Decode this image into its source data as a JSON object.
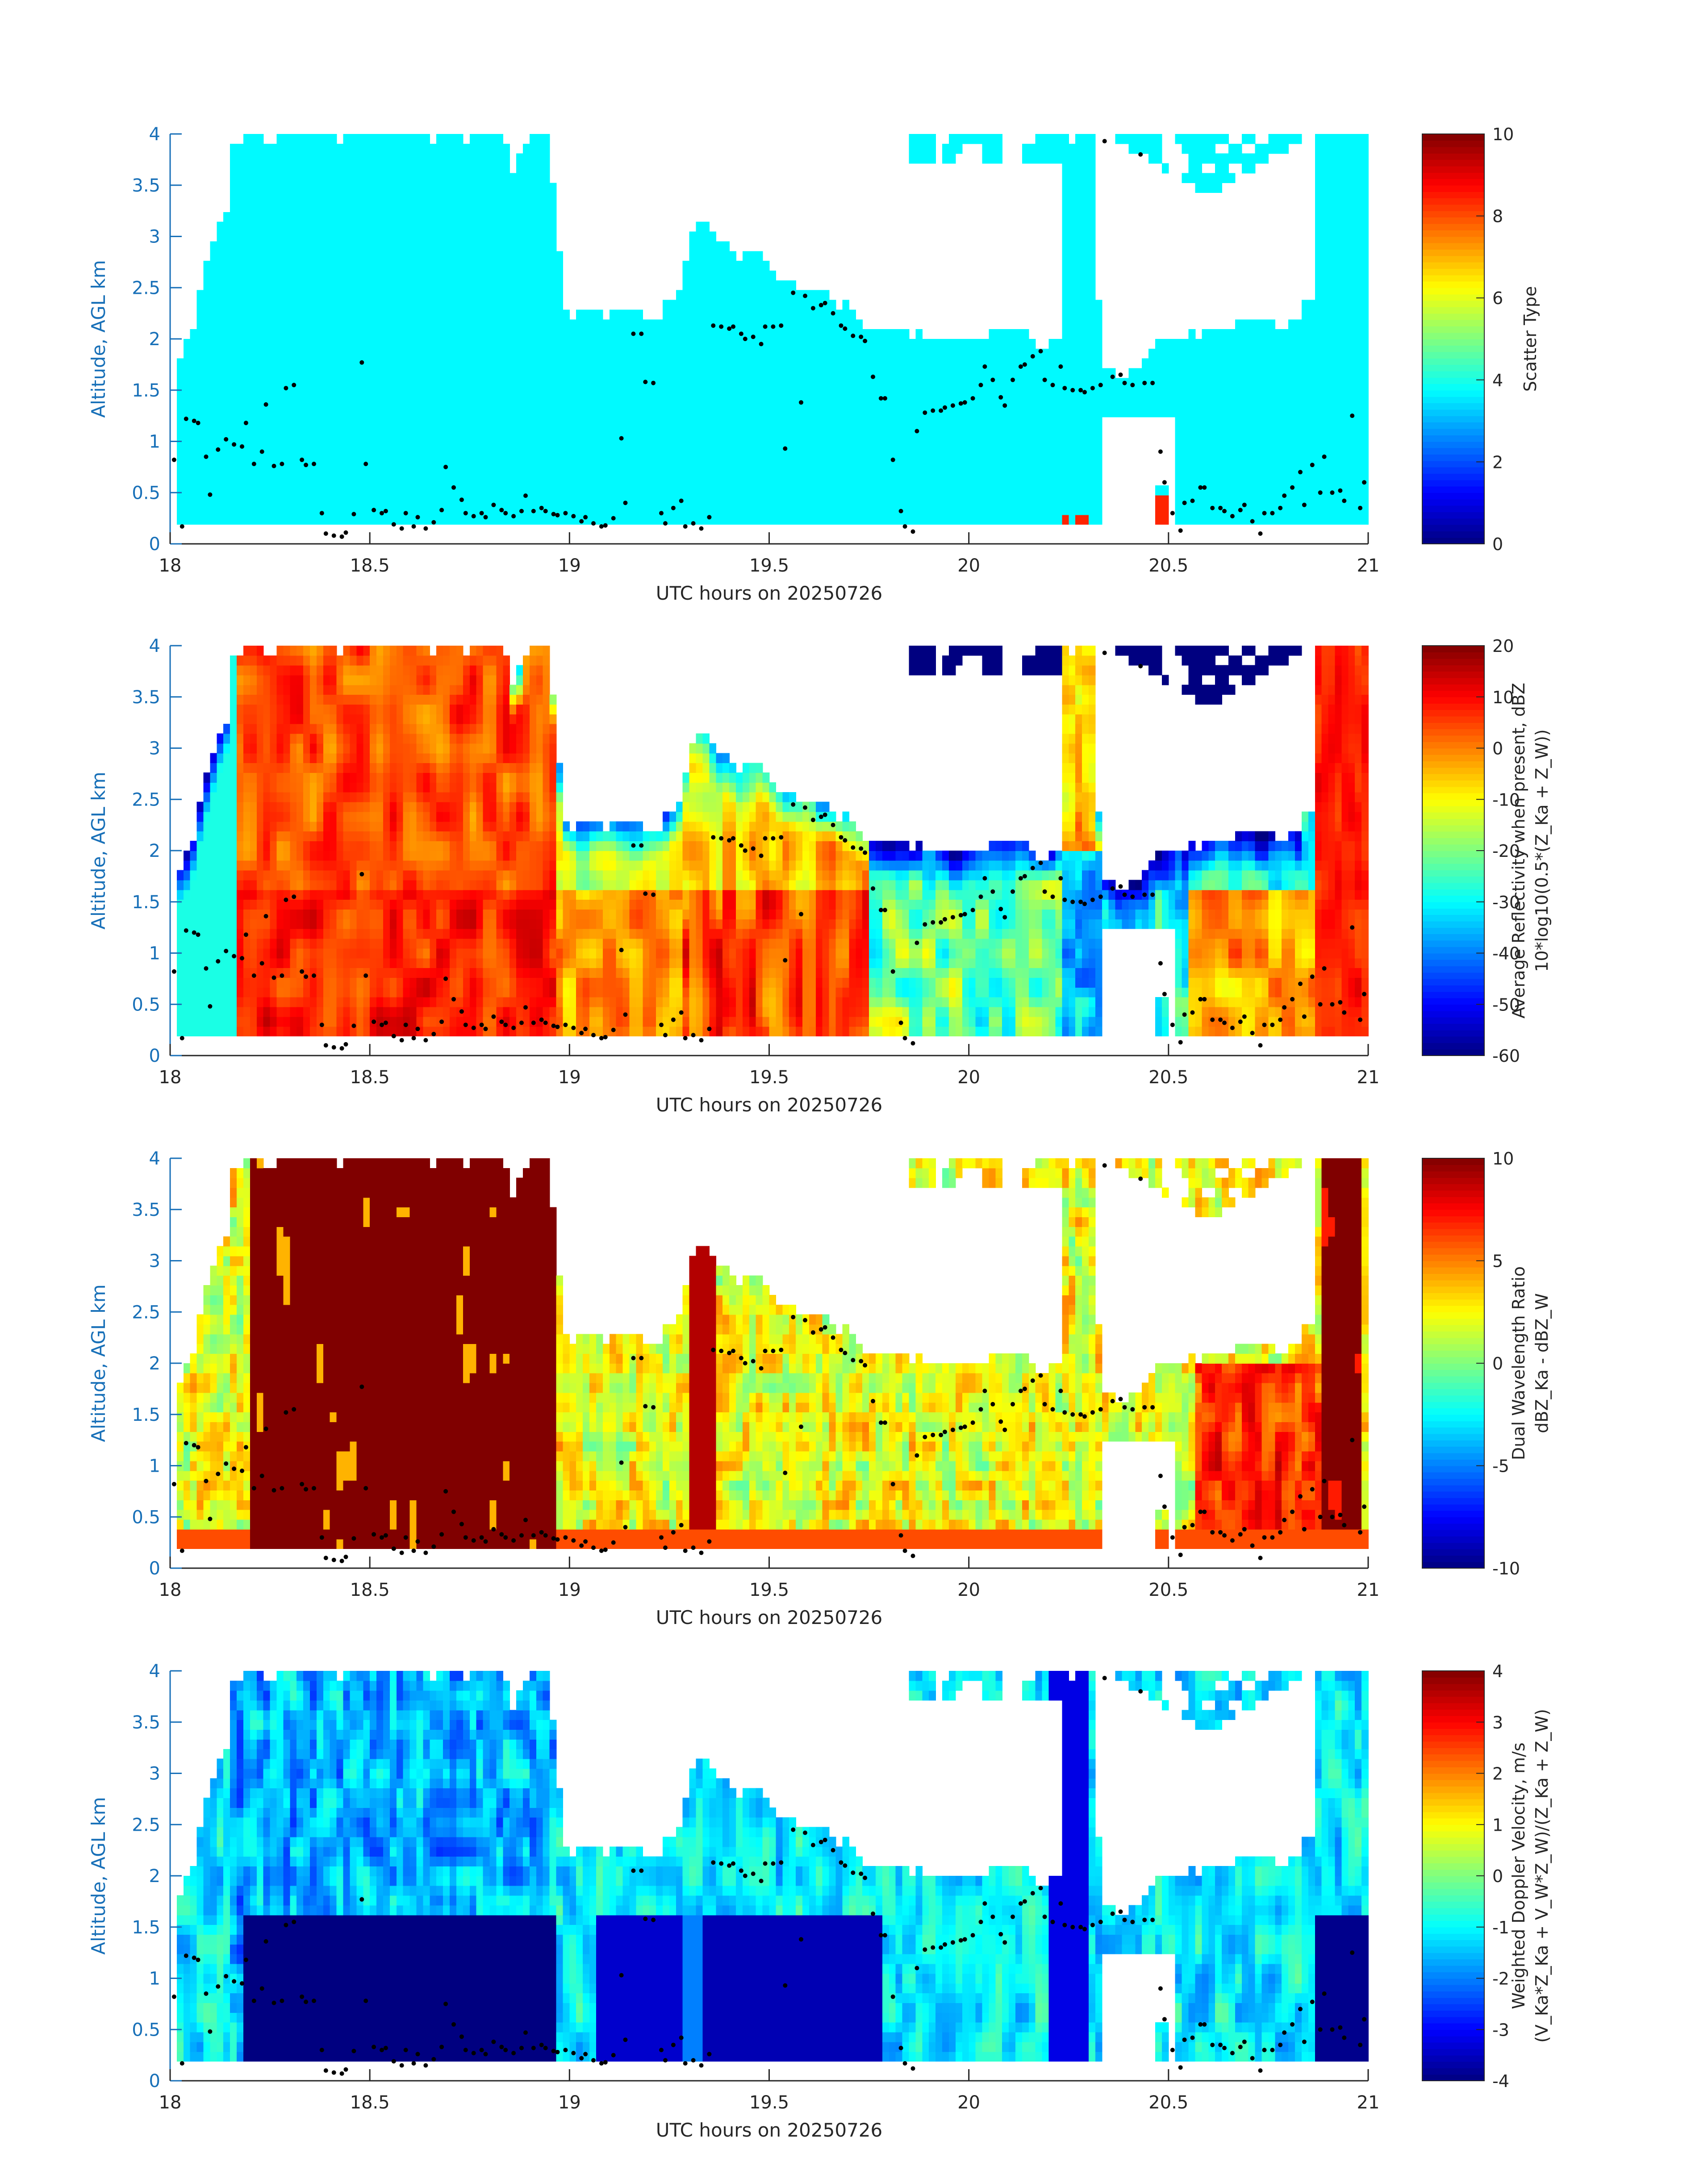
{
  "chart_data": [
    {
      "type": "heatmap",
      "title": "",
      "xlabel": "UTC hours on 20250726",
      "ylabel": "Altitude, AGL km",
      "xlim": [
        18,
        21
      ],
      "ylim": [
        0,
        4
      ],
      "x_ticks": [
        "18",
        "18.5",
        "19",
        "19.5",
        "20",
        "20.5",
        "21"
      ],
      "y_ticks": [
        "0",
        "0.5",
        "1",
        "1.5",
        "2",
        "2.5",
        "3",
        "3.5",
        "4"
      ],
      "colorbar": {
        "label_lines": [
          "Scatter Type"
        ],
        "range": [
          0,
          10
        ],
        "ticks": [
          "0",
          "2",
          "4",
          "6",
          "8",
          "10"
        ]
      },
      "field": "scatter_type"
    },
    {
      "type": "heatmap",
      "title": "",
      "xlabel": "UTC hours on 20250726",
      "ylabel": "Altitude, AGL km",
      "xlim": [
        18,
        21
      ],
      "ylim": [
        0,
        4
      ],
      "x_ticks": [
        "18",
        "18.5",
        "19",
        "19.5",
        "20",
        "20.5",
        "21"
      ],
      "y_ticks": [
        "0",
        "0.5",
        "1",
        "1.5",
        "2",
        "2.5",
        "3",
        "3.5",
        "4"
      ],
      "colorbar": {
        "label_lines": [
          "Average Reflectivity when present, dBZ",
          "10*log10(0.5*(Z_Ka + Z_W))"
        ],
        "range": [
          -60,
          20
        ],
        "ticks": [
          "-60",
          "-50",
          "-40",
          "-30",
          "-20",
          "-10",
          "0",
          "10",
          "20"
        ]
      },
      "field": "reflectivity"
    },
    {
      "type": "heatmap",
      "title": "",
      "xlabel": "UTC hours on 20250726",
      "ylabel": "Altitude, AGL km",
      "xlim": [
        18,
        21
      ],
      "ylim": [
        0,
        4
      ],
      "x_ticks": [
        "18",
        "18.5",
        "19",
        "19.5",
        "20",
        "20.5",
        "21"
      ],
      "y_ticks": [
        "0",
        "0.5",
        "1",
        "1.5",
        "2",
        "2.5",
        "3",
        "3.5",
        "4"
      ],
      "colorbar": {
        "label_lines": [
          "Dual Wavelength Ratio",
          "dBZ_Ka - dBZ_W"
        ],
        "range": [
          -10,
          10
        ],
        "ticks": [
          "-10",
          "-5",
          "0",
          "5",
          "10"
        ]
      },
      "field": "dwr"
    },
    {
      "type": "heatmap",
      "title": "",
      "xlabel": "UTC hours on 20250726",
      "ylabel": "Altitude, AGL km",
      "xlim": [
        18,
        21
      ],
      "ylim": [
        0,
        4
      ],
      "x_ticks": [
        "18",
        "18.5",
        "19",
        "19.5",
        "20",
        "20.5",
        "21"
      ],
      "y_ticks": [
        "0",
        "0.5",
        "1",
        "1.5",
        "2",
        "2.5",
        "3",
        "3.5",
        "4"
      ],
      "colorbar": {
        "label_lines": [
          "Weighted Doppler Velocity, m/s",
          "(V_Ka*Z_Ka + V_W*Z_W)/(Z_Ka + Z_W)"
        ],
        "range": [
          -4,
          4
        ],
        "ticks": [
          "-4",
          "-3",
          "-2",
          "-1",
          "0",
          "1",
          "2",
          "3",
          "4"
        ]
      },
      "field": "velocity"
    }
  ],
  "cloud_base_points": [
    [
      18.01,
      0.82
    ],
    [
      18.03,
      0.17
    ],
    [
      18.04,
      1.22
    ],
    [
      18.06,
      1.2
    ],
    [
      18.07,
      1.18
    ],
    [
      18.09,
      0.85
    ],
    [
      18.1,
      0.48
    ],
    [
      18.12,
      0.92
    ],
    [
      18.14,
      1.02
    ],
    [
      18.16,
      0.97
    ],
    [
      18.18,
      0.95
    ],
    [
      18.19,
      1.18
    ],
    [
      18.21,
      0.78
    ],
    [
      18.23,
      0.9
    ],
    [
      18.24,
      1.36
    ],
    [
      18.26,
      0.76
    ],
    [
      18.28,
      0.78
    ],
    [
      18.29,
      1.52
    ],
    [
      18.31,
      1.55
    ],
    [
      18.33,
      0.82
    ],
    [
      18.34,
      0.77
    ],
    [
      18.36,
      0.78
    ],
    [
      18.38,
      0.3
    ],
    [
      18.39,
      0.1
    ],
    [
      18.41,
      0.08
    ],
    [
      18.43,
      0.07
    ],
    [
      18.44,
      0.11
    ],
    [
      18.46,
      0.29
    ],
    [
      18.48,
      1.77
    ],
    [
      18.49,
      0.78
    ],
    [
      18.51,
      0.33
    ],
    [
      18.53,
      0.3
    ],
    [
      18.54,
      0.32
    ],
    [
      18.56,
      0.19
    ],
    [
      18.58,
      0.15
    ],
    [
      18.59,
      0.3
    ],
    [
      18.61,
      0.17
    ],
    [
      18.62,
      0.26
    ],
    [
      18.64,
      0.15
    ],
    [
      18.66,
      0.21
    ],
    [
      18.68,
      0.33
    ],
    [
      18.69,
      0.75
    ],
    [
      18.71,
      0.55
    ],
    [
      18.73,
      0.43
    ],
    [
      18.74,
      0.3
    ],
    [
      18.76,
      0.27
    ],
    [
      18.78,
      0.3
    ],
    [
      18.79,
      0.26
    ],
    [
      18.81,
      0.38
    ],
    [
      18.83,
      0.33
    ],
    [
      18.84,
      0.3
    ],
    [
      18.86,
      0.27
    ],
    [
      18.88,
      0.32
    ],
    [
      18.89,
      0.47
    ],
    [
      18.91,
      0.32
    ],
    [
      18.93,
      0.35
    ],
    [
      18.94,
      0.32
    ],
    [
      18.96,
      0.29
    ],
    [
      18.97,
      0.28
    ],
    [
      18.99,
      0.3
    ],
    [
      19.01,
      0.27
    ],
    [
      19.03,
      0.22
    ],
    [
      19.04,
      0.26
    ],
    [
      19.06,
      0.2
    ],
    [
      19.08,
      0.17
    ],
    [
      19.09,
      0.18
    ],
    [
      19.11,
      0.25
    ],
    [
      19.13,
      1.03
    ],
    [
      19.14,
      0.4
    ],
    [
      19.16,
      2.05
    ],
    [
      19.18,
      2.05
    ],
    [
      19.19,
      1.58
    ],
    [
      19.21,
      1.57
    ],
    [
      19.23,
      0.3
    ],
    [
      19.24,
      0.2
    ],
    [
      19.26,
      0.35
    ],
    [
      19.28,
      0.42
    ],
    [
      19.29,
      0.17
    ],
    [
      19.31,
      0.2
    ],
    [
      19.33,
      0.15
    ],
    [
      19.35,
      0.26
    ],
    [
      19.36,
      2.13
    ],
    [
      19.38,
      2.12
    ],
    [
      19.4,
      2.1
    ],
    [
      19.41,
      2.12
    ],
    [
      19.43,
      2.05
    ],
    [
      19.44,
      2.0
    ],
    [
      19.46,
      2.02
    ],
    [
      19.48,
      1.95
    ],
    [
      19.49,
      2.12
    ],
    [
      19.51,
      2.12
    ],
    [
      19.53,
      2.13
    ],
    [
      19.54,
      0.93
    ],
    [
      19.56,
      2.45
    ],
    [
      19.58,
      1.38
    ],
    [
      19.59,
      2.42
    ],
    [
      19.61,
      2.3
    ],
    [
      19.63,
      2.33
    ],
    [
      19.64,
      2.35
    ],
    [
      19.66,
      2.25
    ],
    [
      19.68,
      2.13
    ],
    [
      19.69,
      2.1
    ],
    [
      19.71,
      2.03
    ],
    [
      19.73,
      2.02
    ],
    [
      19.74,
      1.98
    ],
    [
      19.76,
      1.63
    ],
    [
      19.78,
      1.42
    ],
    [
      19.79,
      1.42
    ],
    [
      19.81,
      0.82
    ],
    [
      19.83,
      0.32
    ],
    [
      19.84,
      0.17
    ],
    [
      19.86,
      0.12
    ],
    [
      19.87,
      1.1
    ],
    [
      19.89,
      1.28
    ],
    [
      19.91,
      1.3
    ],
    [
      19.93,
      1.3
    ],
    [
      19.94,
      1.33
    ],
    [
      19.96,
      1.35
    ],
    [
      19.98,
      1.37
    ],
    [
      19.99,
      1.38
    ],
    [
      20.01,
      1.42
    ],
    [
      20.03,
      1.55
    ],
    [
      20.04,
      1.73
    ],
    [
      20.06,
      1.6
    ],
    [
      20.08,
      1.43
    ],
    [
      20.09,
      1.35
    ],
    [
      20.11,
      1.6
    ],
    [
      20.13,
      1.73
    ],
    [
      20.14,
      1.75
    ],
    [
      20.16,
      1.83
    ],
    [
      20.18,
      1.88
    ],
    [
      20.19,
      1.6
    ],
    [
      20.21,
      1.55
    ],
    [
      20.23,
      1.73
    ],
    [
      20.24,
      1.52
    ],
    [
      20.26,
      1.5
    ],
    [
      20.28,
      1.5
    ],
    [
      20.29,
      1.48
    ],
    [
      20.31,
      1.52
    ],
    [
      20.33,
      1.55
    ],
    [
      20.34,
      3.93
    ],
    [
      20.36,
      1.63
    ],
    [
      20.38,
      1.65
    ],
    [
      20.39,
      1.57
    ],
    [
      20.41,
      1.55
    ],
    [
      20.43,
      3.8
    ],
    [
      20.44,
      1.57
    ],
    [
      20.46,
      1.57
    ],
    [
      20.48,
      0.9
    ],
    [
      20.49,
      0.6
    ],
    [
      20.51,
      0.3
    ],
    [
      20.53,
      0.13
    ],
    [
      20.54,
      0.4
    ],
    [
      20.56,
      0.42
    ],
    [
      20.58,
      0.55
    ],
    [
      20.59,
      0.55
    ],
    [
      20.61,
      0.35
    ],
    [
      20.63,
      0.35
    ],
    [
      20.64,
      0.32
    ],
    [
      20.66,
      0.27
    ],
    [
      20.68,
      0.33
    ],
    [
      20.69,
      0.38
    ],
    [
      20.71,
      0.22
    ],
    [
      20.73,
      0.1
    ],
    [
      20.74,
      0.3
    ],
    [
      20.76,
      0.3
    ],
    [
      20.78,
      0.35
    ],
    [
      20.79,
      0.47
    ],
    [
      20.81,
      0.55
    ],
    [
      20.83,
      0.7
    ],
    [
      20.84,
      0.38
    ],
    [
      20.86,
      0.77
    ],
    [
      20.88,
      0.5
    ],
    [
      20.89,
      0.85
    ],
    [
      20.91,
      0.5
    ],
    [
      20.93,
      0.52
    ],
    [
      20.94,
      0.42
    ],
    [
      20.96,
      1.25
    ],
    [
      20.98,
      0.35
    ],
    [
      20.99,
      0.6
    ]
  ]
}
